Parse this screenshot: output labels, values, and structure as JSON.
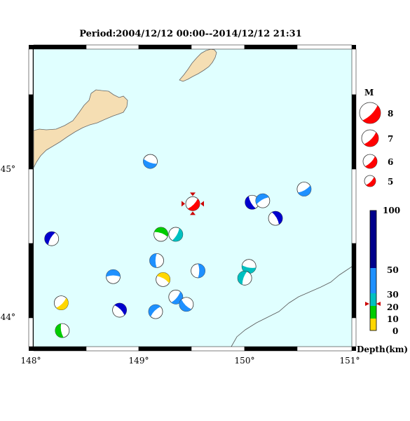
{
  "title": "Period:2004/12/12 00:00--2014/12/12 21:31",
  "colors": {
    "sea": "#e0ffff",
    "land": "#f5deb3",
    "deep": "#0000cd",
    "mid": "#1e90ff",
    "shallow_mid": "#00c0c0",
    "shallow": "#00cc00",
    "surface": "#ffd700",
    "main": "#ff0000"
  },
  "axes": {
    "x_ticks": [
      "148°",
      "149°",
      "150°",
      "151°"
    ],
    "y_ticks": [
      "44°",
      "45°"
    ]
  },
  "magnitude_legend": {
    "title": "M",
    "items": [
      "8",
      "7",
      "6",
      "5"
    ]
  },
  "depth_legend": {
    "label": "Depth(km)",
    "ticks": [
      "100",
      "50",
      "30",
      "20",
      "10",
      "0"
    ]
  },
  "main_event": {
    "lon": 149.5,
    "lat": 44.76,
    "depth_km": 22
  },
  "events": [
    {
      "lon": 149.1,
      "lat": 45.05,
      "depth_class": "mid"
    },
    {
      "lon": 148.17,
      "lat": 44.52,
      "depth_class": "deep"
    },
    {
      "lon": 149.2,
      "lat": 44.55,
      "depth_class": "shallow"
    },
    {
      "lon": 149.34,
      "lat": 44.55,
      "depth_class": "shallow_mid"
    },
    {
      "lon": 150.06,
      "lat": 44.77,
      "depth_class": "deep"
    },
    {
      "lon": 150.16,
      "lat": 44.78,
      "depth_class": "mid"
    },
    {
      "lon": 150.28,
      "lat": 44.66,
      "depth_class": "deep"
    },
    {
      "lon": 150.55,
      "lat": 44.86,
      "depth_class": "mid"
    },
    {
      "lon": 149.16,
      "lat": 44.37,
      "depth_class": "mid"
    },
    {
      "lon": 148.75,
      "lat": 44.26,
      "depth_class": "mid"
    },
    {
      "lon": 149.55,
      "lat": 44.3,
      "depth_class": "mid"
    },
    {
      "lon": 150.03,
      "lat": 44.33,
      "depth_class": "shallow_mid"
    },
    {
      "lon": 149.99,
      "lat": 44.25,
      "depth_class": "shallow_mid"
    },
    {
      "lon": 149.22,
      "lat": 44.24,
      "depth_class": "surface"
    },
    {
      "lon": 149.34,
      "lat": 44.12,
      "depth_class": "mid"
    },
    {
      "lon": 149.44,
      "lat": 44.07,
      "depth_class": "mid"
    },
    {
      "lon": 149.15,
      "lat": 44.02,
      "depth_class": "mid"
    },
    {
      "lon": 148.81,
      "lat": 44.03,
      "depth_class": "deep"
    },
    {
      "lon": 148.26,
      "lat": 44.08,
      "depth_class": "surface"
    },
    {
      "lon": 148.27,
      "lat": 43.89,
      "depth_class": "shallow"
    }
  ]
}
